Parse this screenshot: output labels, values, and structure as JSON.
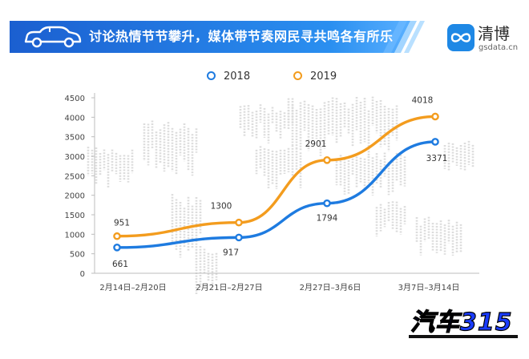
{
  "banner": {
    "title": "讨论热情节节攀升，媒体带节奏网民寻共鸣各有所乐",
    "icon": "car-icon",
    "color": "#1e6fd9"
  },
  "brand": {
    "name": "清博",
    "domain": "gsdata.cn",
    "icon": "infinity-logo-icon",
    "color": "#1e88e5"
  },
  "stamp": {
    "text": "汽车315"
  },
  "chart_data": {
    "type": "line",
    "categories": [
      "2月14日–2月20日",
      "2月21日–2月27日",
      "2月27日–3月6日",
      "3月7日–3月14日"
    ],
    "series": [
      {
        "name": "2018",
        "values": [
          661,
          917,
          1794,
          3371
        ],
        "color": "#1e7be0"
      },
      {
        "name": "2019",
        "values": [
          951,
          1300,
          2901,
          4018
        ],
        "color": "#f39c1e"
      }
    ],
    "yticks": [
      "0",
      "500",
      "1000",
      "1500",
      "2000",
      "2500",
      "3000",
      "3500",
      "4000",
      "4500"
    ],
    "ylim": [
      0,
      4500
    ],
    "grid": false,
    "legend_position": "top"
  }
}
